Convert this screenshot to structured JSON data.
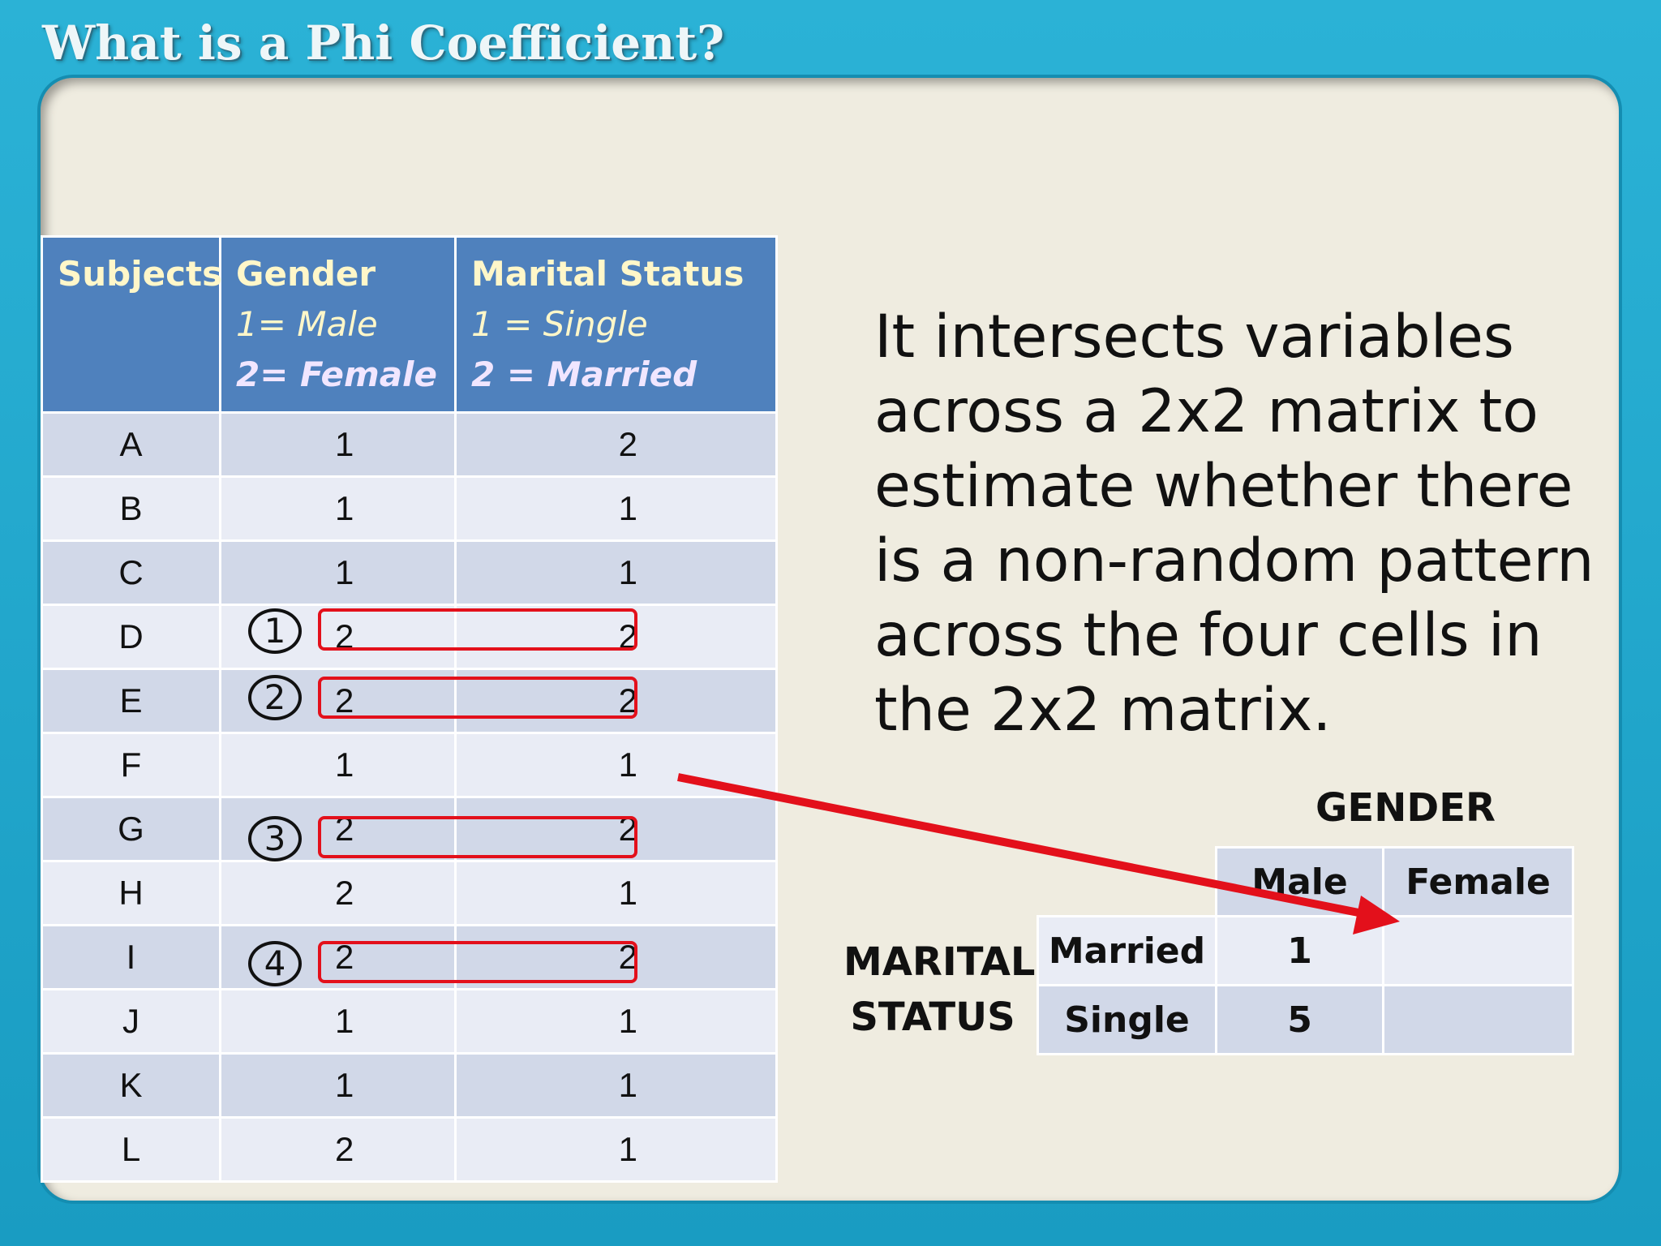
{
  "title": "What is a Phi Coefficient?",
  "table": {
    "headers": {
      "subjects": "Subjects",
      "gender": "Gender",
      "gender_sub1": "1= Male",
      "gender_sub2": "2= Female",
      "marital": "Marital Status",
      "marital_sub1": "1 = Single",
      "marital_sub2": "2 = Married"
    },
    "rows": [
      {
        "subject": "A",
        "gender": "1",
        "marital": "2"
      },
      {
        "subject": "B",
        "gender": "1",
        "marital": "1"
      },
      {
        "subject": "C",
        "gender": "1",
        "marital": "1"
      },
      {
        "subject": "D",
        "gender": "2",
        "marital": "2"
      },
      {
        "subject": "E",
        "gender": "2",
        "marital": "2"
      },
      {
        "subject": "F",
        "gender": "1",
        "marital": "1"
      },
      {
        "subject": "G",
        "gender": "2",
        "marital": "2"
      },
      {
        "subject": "H",
        "gender": "2",
        "marital": "1"
      },
      {
        "subject": "I",
        "gender": "2",
        "marital": "2"
      },
      {
        "subject": "J",
        "gender": "1",
        "marital": "1"
      },
      {
        "subject": "K",
        "gender": "1",
        "marital": "1"
      },
      {
        "subject": "L",
        "gender": "2",
        "marital": "1"
      }
    ]
  },
  "annotations": {
    "markers": [
      "1",
      "2",
      "3",
      "4"
    ],
    "highlight_color": "#e3101b"
  },
  "explanation": "It intersects variables across a 2x2 matrix to estimate whether there is a non-random pattern across the four cells in the 2x2 matrix.",
  "matrix": {
    "gender_label": "GENDER",
    "marital_label_line1": "MARITAL",
    "marital_label_line2": "STATUS",
    "col_male": "Male",
    "col_female": "Female",
    "row_married": "Married",
    "row_single": "Single",
    "married_male": "1",
    "married_female": "",
    "single_male": "5",
    "single_female": ""
  },
  "colors": {
    "frame": "#1fa3c8",
    "panel": "#efece0",
    "header": "#4f81bd",
    "header_text": "#fff7c9",
    "row_dark": "#d1d8e8",
    "row_light": "#e9ecf5",
    "arrow": "#e3101b"
  }
}
